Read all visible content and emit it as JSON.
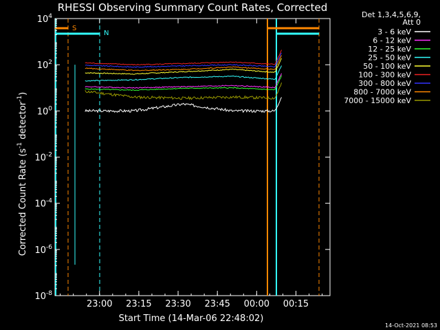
{
  "chart_data": {
    "type": "line",
    "title": "RHESSI Observing Summary Count Rates, Corrected",
    "xlabel": "Start Time (14-Mar-06 22:48:02)",
    "ylabel_main": "Corrected Count Rate (s",
    "ylabel_sup1": "-1",
    "ylabel_mid": " detector",
    "ylabel_sup2": "-1",
    "ylabel_end": ")",
    "y_scale": "log",
    "ylim_exp": [
      -8,
      4
    ],
    "xlim_min": [
      -5,
      100
    ],
    "x_ticks": [
      {
        "min": 12,
        "label": "23:00"
      },
      {
        "min": 27,
        "label": "23:15"
      },
      {
        "min": 42,
        "label": "23:30"
      },
      {
        "min": 57,
        "label": "23:45"
      },
      {
        "min": 72,
        "label": "00:00"
      },
      {
        "min": 87,
        "label": "00:15"
      }
    ],
    "y_ticks": [
      {
        "exp": 4,
        "label": "10",
        "sup": "4"
      },
      {
        "exp": 2,
        "label": "10",
        "sup": "2"
      },
      {
        "exp": 0,
        "label": "10",
        "sup": "0"
      },
      {
        "exp": -2,
        "label": "10",
        "sup": "-2"
      },
      {
        "exp": -4,
        "label": "10",
        "sup": "-4"
      },
      {
        "exp": -6,
        "label": "10",
        "sup": "-6"
      },
      {
        "exp": -8,
        "label": "10",
        "sup": "-8"
      }
    ],
    "legend_header": [
      "Det 1,3,4,5,6,9,",
      "Att 0"
    ],
    "series": [
      {
        "name": "3 - 6 keV",
        "color": "#ffffff",
        "level": [
          0.0,
          0.0,
          0.3,
          0.0,
          0.0
        ]
      },
      {
        "name": "6 - 12 keV",
        "color": "#ff33ff",
        "level": [
          1.05,
          1.0,
          1.05,
          1.1,
          1.0
        ]
      },
      {
        "name": "12 - 25 keV",
        "color": "#33ff33",
        "level": [
          0.95,
          0.9,
          0.98,
          1.0,
          0.9
        ]
      },
      {
        "name": "25 - 50 keV",
        "color": "#33ffff",
        "level": [
          1.3,
          1.35,
          1.45,
          1.5,
          1.35
        ]
      },
      {
        "name": "50 - 100 keV",
        "color": "#ffff33",
        "level": [
          1.65,
          1.6,
          1.7,
          1.8,
          1.65
        ]
      },
      {
        "name": "100 - 300 keV",
        "color": "#ee2222",
        "level": [
          2.08,
          2.0,
          2.05,
          2.12,
          2.0
        ]
      },
      {
        "name": "300 - 800 keV",
        "color": "#3333ff",
        "level": [
          1.98,
          1.9,
          1.95,
          2.0,
          1.9
        ]
      },
      {
        "name": "800 - 7000 keV",
        "color": "#ff8800",
        "level": [
          1.85,
          1.75,
          1.8,
          1.9,
          1.78
        ]
      },
      {
        "name": "7000 - 15000 keV",
        "color": "#999900",
        "level": [
          0.85,
          0.6,
          0.55,
          0.6,
          0.55
        ]
      }
    ],
    "markers": [
      {
        "label": "S",
        "color": "#ff8800"
      },
      {
        "label": "N",
        "color": "#33ffff"
      }
    ],
    "footer": "14-Oct-2021 08:53"
  }
}
